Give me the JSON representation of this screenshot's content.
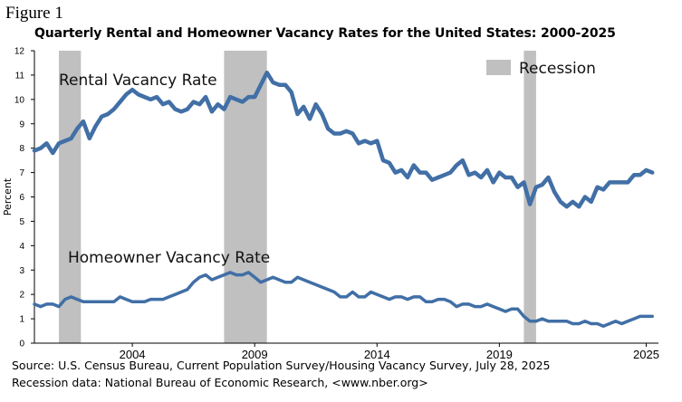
{
  "figure_label": "Figure 1",
  "chart_data": {
    "type": "line",
    "title": "Quarterly Rental and Homeowner Vacancy Rates for the United States: 2000-2025",
    "ylabel": "Percent",
    "xlabel": "",
    "ylim": [
      0,
      12
    ],
    "xlim": [
      2000,
      2025.5
    ],
    "yticks": [
      "0",
      "1",
      "2",
      "3",
      "4",
      "5",
      "6",
      "7",
      "8",
      "9",
      "10",
      "11",
      "12"
    ],
    "xticks": [
      {
        "value": 2004,
        "label": "2004"
      },
      {
        "value": 2009,
        "label": "2009"
      },
      {
        "value": 2014,
        "label": "2014"
      },
      {
        "value": 2019,
        "label": "2019"
      },
      {
        "value": 2025,
        "label": "2025"
      }
    ],
    "grid": false,
    "legend": {
      "label": "Recession",
      "color": "#c0c0c0",
      "placement": "top-right"
    },
    "recessions": [
      [
        2001.0,
        2001.9
      ],
      [
        2007.75,
        2009.5
      ],
      [
        2020.0,
        2020.5
      ]
    ],
    "series": [
      {
        "name": "Rental Vacancy Rate",
        "color": "#416fa6",
        "x": [
          2000.0,
          2000.25,
          2000.5,
          2000.75,
          2001.0,
          2001.25,
          2001.5,
          2001.75,
          2002.0,
          2002.25,
          2002.5,
          2002.75,
          2003.0,
          2003.25,
          2003.5,
          2003.75,
          2004.0,
          2004.25,
          2004.5,
          2004.75,
          2005.0,
          2005.25,
          2005.5,
          2005.75,
          2006.0,
          2006.25,
          2006.5,
          2006.75,
          2007.0,
          2007.25,
          2007.5,
          2007.75,
          2008.0,
          2008.25,
          2008.5,
          2008.75,
          2009.0,
          2009.25,
          2009.5,
          2009.75,
          2010.0,
          2010.25,
          2010.5,
          2010.75,
          2011.0,
          2011.25,
          2011.5,
          2011.75,
          2012.0,
          2012.25,
          2012.5,
          2012.75,
          2013.0,
          2013.25,
          2013.5,
          2013.75,
          2014.0,
          2014.25,
          2014.5,
          2014.75,
          2015.0,
          2015.25,
          2015.5,
          2015.75,
          2016.0,
          2016.25,
          2016.5,
          2016.75,
          2017.0,
          2017.25,
          2017.5,
          2017.75,
          2018.0,
          2018.25,
          2018.5,
          2018.75,
          2019.0,
          2019.25,
          2019.5,
          2019.75,
          2020.0,
          2020.25,
          2020.5,
          2020.75,
          2021.0,
          2021.25,
          2021.5,
          2021.75,
          2022.0,
          2022.25,
          2022.5,
          2022.75,
          2023.0,
          2023.25,
          2023.5,
          2023.75,
          2024.0,
          2024.25,
          2024.5,
          2024.75,
          2025.0,
          2025.25
        ],
        "values": [
          7.9,
          8.0,
          8.2,
          7.8,
          8.2,
          8.3,
          8.4,
          8.8,
          9.1,
          8.4,
          8.9,
          9.3,
          9.4,
          9.6,
          9.9,
          10.2,
          10.4,
          10.2,
          10.1,
          10.0,
          10.1,
          9.8,
          9.9,
          9.6,
          9.5,
          9.6,
          9.9,
          9.8,
          10.1,
          9.5,
          9.8,
          9.6,
          10.1,
          10.0,
          9.9,
          10.1,
          10.1,
          10.6,
          11.1,
          10.7,
          10.6,
          10.6,
          10.3,
          9.4,
          9.7,
          9.2,
          9.8,
          9.4,
          8.8,
          8.6,
          8.6,
          8.7,
          8.6,
          8.2,
          8.3,
          8.2,
          8.3,
          7.5,
          7.4,
          7.0,
          7.1,
          6.8,
          7.3,
          7.0,
          7.0,
          6.7,
          6.8,
          6.9,
          7.0,
          7.3,
          7.5,
          6.9,
          7.0,
          6.8,
          7.1,
          6.6,
          7.0,
          6.8,
          6.8,
          6.4,
          6.6,
          5.7,
          6.4,
          6.5,
          6.8,
          6.2,
          5.8,
          5.6,
          5.8,
          5.6,
          6.0,
          5.8,
          6.4,
          6.3,
          6.6,
          6.6,
          6.6,
          6.6,
          6.9,
          6.9,
          7.1,
          7.0
        ]
      },
      {
        "name": "Homeowner Vacancy Rate",
        "color": "#416fa6",
        "x": [
          2000.0,
          2000.25,
          2000.5,
          2000.75,
          2001.0,
          2001.25,
          2001.5,
          2001.75,
          2002.0,
          2002.25,
          2002.5,
          2002.75,
          2003.0,
          2003.25,
          2003.5,
          2003.75,
          2004.0,
          2004.25,
          2004.5,
          2004.75,
          2005.0,
          2005.25,
          2005.5,
          2005.75,
          2006.0,
          2006.25,
          2006.5,
          2006.75,
          2007.0,
          2007.25,
          2007.5,
          2007.75,
          2008.0,
          2008.25,
          2008.5,
          2008.75,
          2009.0,
          2009.25,
          2009.5,
          2009.75,
          2010.0,
          2010.25,
          2010.5,
          2010.75,
          2011.0,
          2011.25,
          2011.5,
          2011.75,
          2012.0,
          2012.25,
          2012.5,
          2012.75,
          2013.0,
          2013.25,
          2013.5,
          2013.75,
          2014.0,
          2014.25,
          2014.5,
          2014.75,
          2015.0,
          2015.25,
          2015.5,
          2015.75,
          2016.0,
          2016.25,
          2016.5,
          2016.75,
          2017.0,
          2017.25,
          2017.5,
          2017.75,
          2018.0,
          2018.25,
          2018.5,
          2018.75,
          2019.0,
          2019.25,
          2019.5,
          2019.75,
          2020.0,
          2020.25,
          2020.5,
          2020.75,
          2021.0,
          2021.25,
          2021.5,
          2021.75,
          2022.0,
          2022.25,
          2022.5,
          2022.75,
          2023.0,
          2023.25,
          2023.5,
          2023.75,
          2024.0,
          2024.25,
          2024.5,
          2024.75,
          2025.0,
          2025.25
        ],
        "values": [
          1.6,
          1.5,
          1.6,
          1.6,
          1.5,
          1.8,
          1.9,
          1.8,
          1.7,
          1.7,
          1.7,
          1.7,
          1.7,
          1.7,
          1.9,
          1.8,
          1.7,
          1.7,
          1.7,
          1.8,
          1.8,
          1.8,
          1.9,
          2.0,
          2.1,
          2.2,
          2.5,
          2.7,
          2.8,
          2.6,
          2.7,
          2.8,
          2.9,
          2.8,
          2.8,
          2.9,
          2.7,
          2.5,
          2.6,
          2.7,
          2.6,
          2.5,
          2.5,
          2.7,
          2.6,
          2.5,
          2.4,
          2.3,
          2.2,
          2.1,
          1.9,
          1.9,
          2.1,
          1.9,
          1.9,
          2.1,
          2.0,
          1.9,
          1.8,
          1.9,
          1.9,
          1.8,
          1.9,
          1.9,
          1.7,
          1.7,
          1.8,
          1.8,
          1.7,
          1.5,
          1.6,
          1.6,
          1.5,
          1.5,
          1.6,
          1.5,
          1.4,
          1.3,
          1.4,
          1.4,
          1.1,
          0.9,
          0.9,
          1.0,
          0.9,
          0.9,
          0.9,
          0.9,
          0.8,
          0.8,
          0.9,
          0.8,
          0.8,
          0.7,
          0.8,
          0.9,
          0.8,
          0.9,
          1.0,
          1.1,
          1.1,
          1.1
        ]
      }
    ]
  },
  "source": {
    "line1": "Source: U.S. Census Bureau, Current Population Survey/Housing Vacancy Survey, July 28, 2025",
    "line2": "Recession data: National Bureau of Economic Research, <www.nber.org>"
  }
}
